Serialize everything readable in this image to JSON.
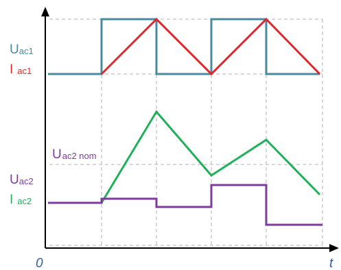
{
  "colors": {
    "u_ac1": "#4a8a9e",
    "i_ac1": "#e0262a",
    "u_ac2": "#7d3c9c",
    "i_ac2": "#1fb05a",
    "u_ac2_nom_label": "#7d3c9c",
    "grid": "#b0b0b0",
    "axis": "#000000",
    "axis_label": "#2a5ea8"
  },
  "labels": {
    "u_ac1": {
      "main": "U",
      "sub": "ac1"
    },
    "i_ac1": {
      "main": "I",
      "sub": "ac1"
    },
    "u_ac2": {
      "main": "U",
      "sub": "ac2"
    },
    "i_ac2": {
      "main": "I",
      "sub": "ac2"
    },
    "u_ac2_nom": {
      "main": "U",
      "sub": "ac2 nom"
    },
    "origin": "0",
    "time_axis": "t"
  }
}
